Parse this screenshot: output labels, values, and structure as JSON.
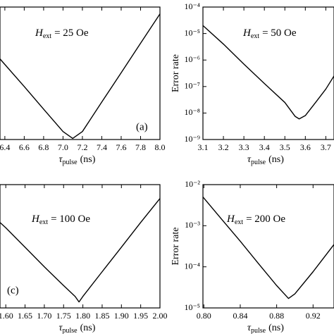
{
  "chart_data": [
    {
      "type": "line",
      "yscale": "log",
      "annotation": {
        "symbol": "H",
        "subscript": "ext",
        "text": "= 25 Oe"
      },
      "panel_label": "(a)",
      "xlabel": {
        "symbol": "τ",
        "subscript": "pulse",
        "text": "(ns)"
      },
      "xlim": [
        6.35,
        8.0
      ],
      "xticks": [
        6.4,
        6.6,
        6.8,
        {
          "value": 7.0,
          "label": "7.0"
        },
        7.2,
        7.4,
        7.6,
        7.8,
        {
          "value": 8.0,
          "label": "8.0"
        }
      ],
      "ylim": [
        1e-09,
        0.0001
      ],
      "series": [
        {
          "color": "#000000",
          "x": [
            6.35,
            6.6,
            6.8,
            7.0,
            7.1,
            7.2,
            7.4,
            7.6,
            7.8,
            8.0
          ],
          "values": [
            1.1e-06,
            1e-07,
            1.4e-08,
            2e-09,
            1.1e-09,
            2e-09,
            2.6e-08,
            3.3e-07,
            4.3e-06,
            5.5e-05
          ]
        }
      ]
    },
    {
      "type": "line",
      "yscale": "log",
      "annotation": {
        "symbol": "H",
        "subscript": "ext",
        "text": "= 50 Oe"
      },
      "xlabel": {
        "symbol": "τ",
        "subscript": "pulse",
        "text": "(ns)"
      },
      "ylabel": "Error rate",
      "xlim": [
        3.1,
        3.74
      ],
      "xticks": [
        3.1,
        3.2,
        3.3,
        3.4,
        3.5,
        3.6,
        3.7
      ],
      "ylim": [
        1e-09,
        0.0001
      ],
      "yticks": [
        {
          "value": 1e-09,
          "label": "10⁻⁹"
        },
        {
          "value": 1e-08,
          "label": "10⁻⁸"
        },
        {
          "value": 1e-07,
          "label": "10⁻⁷"
        },
        {
          "value": 1e-06,
          "label": "10⁻⁶"
        },
        {
          "value": 1e-05,
          "label": "10⁻⁵"
        },
        {
          "value": 0.0001,
          "label": "10⁻⁴"
        }
      ],
      "series": [
        {
          "color": "#000000",
          "x": [
            3.1,
            3.2,
            3.3,
            3.4,
            3.5,
            3.55,
            3.57,
            3.6,
            3.65,
            3.7,
            3.74
          ],
          "values": [
            2e-05,
            4e-06,
            7e-07,
            1.3e-07,
            2.5e-08,
            7.5e-09,
            6e-09,
            8e-09,
            2.5e-08,
            8e-08,
            2.5e-07
          ]
        }
      ]
    },
    {
      "type": "line",
      "yscale": "log",
      "annotation": {
        "symbol": "H",
        "subscript": "ext",
        "text": "= 100 Oe"
      },
      "panel_label": "(c)",
      "xlabel": {
        "symbol": "τ",
        "subscript": "pulse",
        "text": "(ns)"
      },
      "xlim": [
        1.585,
        2.0
      ],
      "xticks": [
        {
          "value": 1.6,
          "label": "1.60"
        },
        1.65,
        {
          "value": 1.7,
          "label": "1.70"
        },
        1.75,
        {
          "value": 1.8,
          "label": "1.80"
        },
        1.85,
        {
          "value": 1.9,
          "label": "1.90"
        },
        1.95,
        {
          "value": 2.0,
          "label": "2.00"
        }
      ],
      "ylim": [
        1e-05,
        0.01
      ],
      "series": [
        {
          "color": "#000000",
          "x": [
            1.585,
            1.6,
            1.65,
            1.7,
            1.75,
            1.78,
            1.79,
            1.8,
            1.85,
            1.9,
            1.95,
            2.0
          ],
          "values": [
            0.0012,
            0.00089,
            0.0003,
            0.0001,
            3.5e-05,
            1.9e-05,
            1.4e-05,
            1.9e-05,
            7.6e-05,
            0.0003,
            0.0012,
            0.0046
          ]
        }
      ]
    },
    {
      "type": "line",
      "yscale": "log",
      "annotation": {
        "symbol": "H",
        "subscript": "ext",
        "text": "= 200 Oe"
      },
      "xlabel": {
        "symbol": "τ",
        "subscript": "pulse",
        "text": "(ns)"
      },
      "ylabel": "Error rate",
      "xlim": [
        0.799,
        0.943
      ],
      "xticks": [
        {
          "value": 0.8,
          "label": "0.80"
        },
        0.84,
        {
          "value": 0.88,
          "label": "0.88"
        },
        {
          "value": 0.92,
          "label": "0.92"
        }
      ],
      "ylim": [
        1e-05,
        0.01
      ],
      "yticks": [
        {
          "value": 1e-05,
          "label": "10⁻⁵"
        },
        {
          "value": 0.0001,
          "label": "10⁻⁴"
        },
        {
          "value": 0.001,
          "label": "10⁻³"
        },
        {
          "value": 0.01,
          "label": "10⁻²"
        }
      ],
      "series": [
        {
          "color": "#000000",
          "x": [
            0.799,
            0.82,
            0.84,
            0.86,
            0.88,
            0.893,
            0.9,
            0.92,
            0.943
          ],
          "values": [
            0.005,
            0.0014,
            0.00042,
            0.00012,
            3.5e-05,
            1.7e-05,
            2.2e-05,
            7.6e-05,
            0.00035
          ]
        }
      ]
    }
  ]
}
